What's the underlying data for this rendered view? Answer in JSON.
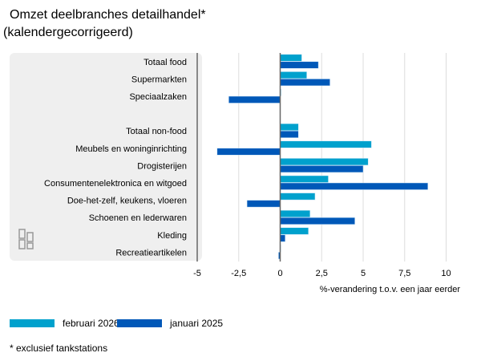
{
  "title_line1": "Omzet deelbranches detailhandel*",
  "title_line2": "(kalendergecorrigeerd)",
  "footnote": "* exclusief tankstations",
  "colors": {
    "februari_2026": "#00a1cd",
    "januari_2025": "#0058b8"
  },
  "logo": "cbs-logo",
  "chart_data": {
    "type": "bar",
    "orientation": "horizontal",
    "categories": [
      "Totaal food",
      "Supermarkten",
      "Speciaalzaken",
      "",
      "Totaal non-food",
      "Meubels en woninginrichting",
      "Drogisterijen",
      "Consumentenelektronica en witgoed",
      "Doe-het-zelf, keukens, vloeren",
      "Schoenen en lederwaren",
      "Kleding",
      "Recreatieartikelen"
    ],
    "series": [
      {
        "name": "februari 2026",
        "values": [
          1.3,
          1.6,
          0.05,
          null,
          1.1,
          5.5,
          5.3,
          2.9,
          2.1,
          1.8,
          1.7,
          0
        ]
      },
      {
        "name": "januari 2025",
        "values": [
          2.3,
          3.0,
          -3.1,
          null,
          1.1,
          -3.8,
          5.0,
          8.9,
          -2.0,
          4.5,
          0.3,
          -0.1
        ]
      }
    ],
    "xlabel": "%-verandering t.o.v. een jaar eerder",
    "xlim": [
      -5,
      10.5
    ],
    "xticks": [
      -5,
      -2.5,
      0,
      2.5,
      5,
      7.5,
      10
    ],
    "xtick_labels": [
      "-5",
      "-2,5",
      "0",
      "2,5",
      "5",
      "7,5",
      "10"
    ],
    "grid": true,
    "legend": "bottom-left"
  }
}
